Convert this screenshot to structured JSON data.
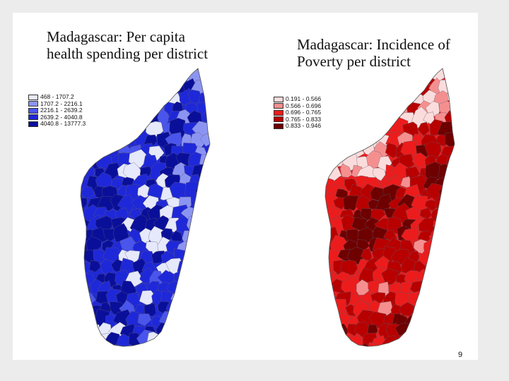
{
  "left_map": {
    "title": "Madagascar:  Per capita health spending per district",
    "legend": [
      {
        "label": "468 - 1707.2",
        "color": "#e6e8fb"
      },
      {
        "label": "1707.2 - 2216.1",
        "color": "#8c94f2"
      },
      {
        "label": "2216.1 - 2639.2",
        "color": "#4a55ec"
      },
      {
        "label": "2639.2 - 4040.8",
        "color": "#1f28d8"
      },
      {
        "label": "4040.8 - 13777.3",
        "color": "#0a0f9a"
      }
    ]
  },
  "right_map": {
    "title": "Madagascar:  Incidence of Poverty per district",
    "legend": [
      {
        "label": "0.191 - 0.566",
        "color": "#fbdcdc"
      },
      {
        "label": "0.566 - 0.696",
        "color": "#f58f8f"
      },
      {
        "label": "0.696 - 0.765",
        "color": "#ec1c1c"
      },
      {
        "label": "0.765 - 0.833",
        "color": "#b80000"
      },
      {
        "label": "0.833 - 0.946",
        "color": "#6e0000"
      }
    ]
  },
  "page_number": "9"
}
